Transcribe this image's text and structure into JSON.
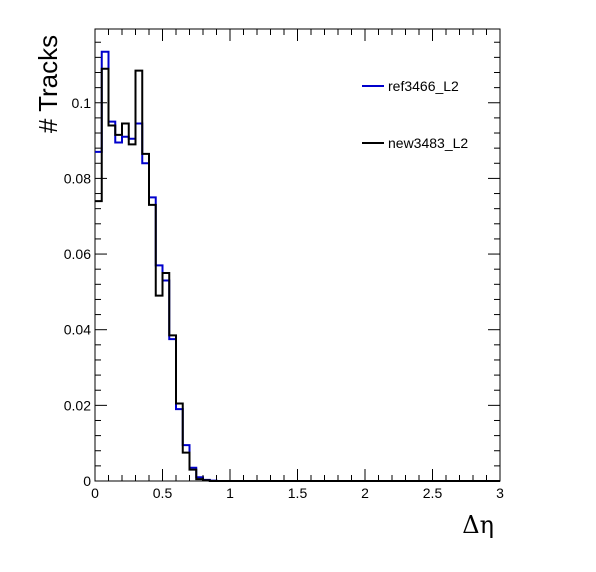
{
  "chart_data": {
    "type": "line",
    "style": "step-histogram",
    "xlabel": "Δη",
    "ylabel": "# Tracks",
    "xlim": [
      0,
      3
    ],
    "ylim": [
      0,
      0.1195
    ],
    "x_ticks": [
      {
        "value": 0,
        "label": "0"
      },
      {
        "value": 0.5,
        "label": "0.5"
      },
      {
        "value": 1,
        "label": "1"
      },
      {
        "value": 1.5,
        "label": "1.5"
      },
      {
        "value": 2,
        "label": "2"
      },
      {
        "value": 2.5,
        "label": "2.5"
      },
      {
        "value": 3,
        "label": "3"
      }
    ],
    "y_ticks": [
      {
        "value": 0,
        "label": "0"
      },
      {
        "value": 0.02,
        "label": "0.02"
      },
      {
        "value": 0.04,
        "label": "0.04"
      },
      {
        "value": 0.06,
        "label": "0.06"
      },
      {
        "value": 0.08,
        "label": "0.08"
      },
      {
        "value": 0.1,
        "label": "0.1"
      }
    ],
    "bin_width": 0.05,
    "legend_position": "top-right",
    "grid": false,
    "series": [
      {
        "name": "ref3466_L2",
        "color": "#0000cc",
        "values": [
          0.087,
          0.1135,
          0.095,
          0.0895,
          0.091,
          0.0905,
          0.0945,
          0.084,
          0.075,
          0.057,
          0.053,
          0.0375,
          0.019,
          0.0095,
          0.0035,
          0.001,
          0.0003,
          0.0001,
          0,
          0,
          0,
          0,
          0,
          0,
          0,
          0,
          0,
          0,
          0,
          0,
          0,
          0,
          0,
          0,
          0,
          0,
          0,
          0,
          0,
          0,
          0,
          0,
          0,
          0,
          0,
          0,
          0,
          0,
          0,
          0,
          0,
          0,
          0,
          0,
          0,
          0,
          0,
          0,
          0,
          0
        ]
      },
      {
        "name": "new3483_L2",
        "color": "#000000",
        "values": [
          0.074,
          0.109,
          0.094,
          0.0915,
          0.0945,
          0.089,
          0.1085,
          0.0865,
          0.073,
          0.049,
          0.055,
          0.0385,
          0.0205,
          0.0075,
          0.003,
          0.0005,
          0.0002,
          0,
          0,
          0,
          0,
          0,
          0,
          0,
          0,
          0,
          0,
          0,
          0,
          0,
          0,
          0,
          0,
          0,
          0,
          0,
          0,
          0,
          0,
          0,
          0,
          0,
          0,
          0,
          0,
          0,
          0,
          0,
          0,
          0,
          0,
          0,
          0,
          0,
          0,
          0,
          0,
          0,
          0,
          0
        ]
      }
    ]
  }
}
